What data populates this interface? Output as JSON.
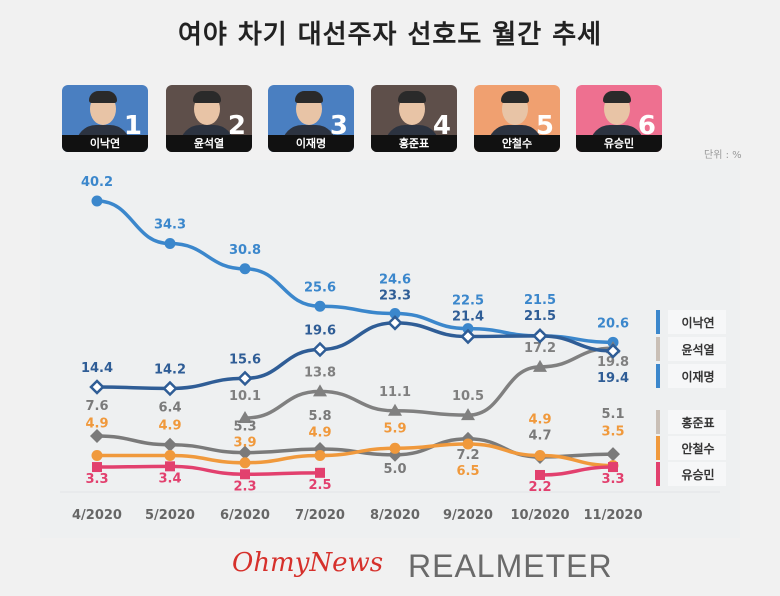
{
  "title": "여야 차기 대선주자 선호도 월간 추세",
  "unit_label": "단위 : %",
  "candidates": [
    {
      "num": "1",
      "name": "이낙연",
      "bg": "#4a7fc1"
    },
    {
      "num": "2",
      "name": "윤석열",
      "bg": "#5e4f4a"
    },
    {
      "num": "3",
      "name": "이재명",
      "bg": "#4a7fc1"
    },
    {
      "num": "4",
      "name": "홍준표",
      "bg": "#5e4f4a"
    },
    {
      "num": "5",
      "name": "안철수",
      "bg": "#f0a070"
    },
    {
      "num": "6",
      "name": "유승민",
      "bg": "#ee7090"
    }
  ],
  "logos": {
    "ohmynews": "OhmyNews",
    "realmeter": "REALMETER"
  },
  "chart_data": {
    "type": "line",
    "categories": [
      "4/2020",
      "5/2020",
      "6/2020",
      "7/2020",
      "8/2020",
      "9/2020",
      "10/2020",
      "11/2020"
    ],
    "legend_position": "right",
    "grid": false,
    "series": [
      {
        "name": "이낙연",
        "color": "#3b87cc",
        "marker": "circle",
        "values": [
          40.2,
          34.3,
          30.8,
          25.6,
          24.6,
          22.5,
          21.5,
          20.6
        ]
      },
      {
        "name": "윤석열",
        "color": "#808080",
        "legend_color": "#c9bfb6",
        "marker": "triangle",
        "values": [
          null,
          null,
          10.1,
          13.8,
          11.1,
          10.5,
          17.2,
          19.8
        ]
      },
      {
        "name": "이재명",
        "color": "#2f5d96",
        "legend_color": "#3b87cc",
        "marker": "open-diamond",
        "values": [
          14.4,
          14.2,
          15.6,
          19.6,
          23.3,
          21.4,
          21.5,
          19.4
        ]
      },
      {
        "name": "홍준표",
        "color": "#7a7a7a",
        "legend_color": "#c9bfb6",
        "marker": "diamond",
        "values": [
          7.6,
          6.4,
          5.3,
          5.8,
          5.0,
          7.2,
          4.7,
          5.1
        ]
      },
      {
        "name": "안철수",
        "color": "#f0993c",
        "marker": "circle",
        "values": [
          4.9,
          4.9,
          3.9,
          4.9,
          5.9,
          6.5,
          4.9,
          3.5
        ]
      },
      {
        "name": "유승민",
        "color": "#e2406e",
        "marker": "square",
        "values": [
          3.3,
          3.4,
          2.3,
          2.5,
          null,
          null,
          2.2,
          3.3
        ]
      }
    ]
  }
}
